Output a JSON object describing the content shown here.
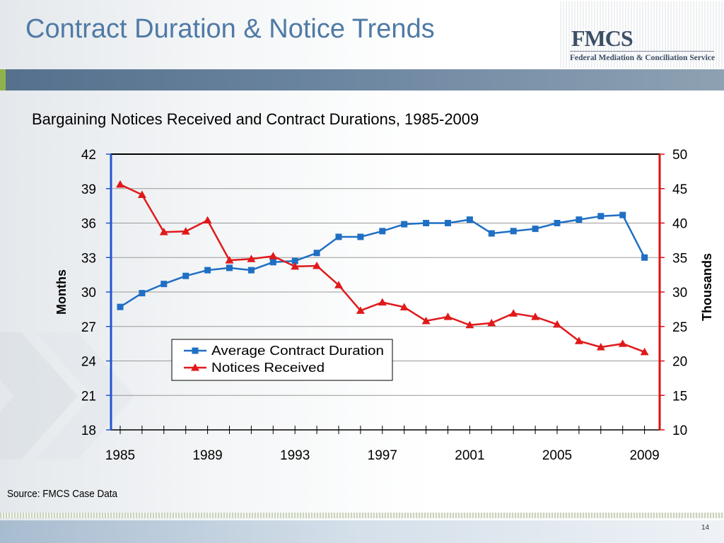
{
  "slide": {
    "title": "Contract Duration & Notice Trends",
    "logo_mark": "FMCS",
    "logo_subtitle": "Federal Mediation & Conciliation Service",
    "source": "Source: FMCS Case Data",
    "page_number": "14"
  },
  "colors": {
    "title": "#4f7aa6",
    "header_band": "#5f7a96",
    "left_axis": "#2255cc",
    "right_axis": "#dd1111",
    "series_duration": "#1f6fc4",
    "series_notices": "#e0191b",
    "grid": "#999999"
  },
  "icons": {
    "logo": "fmcs-logo",
    "background": "chevron-decoration"
  },
  "chart_data": {
    "type": "line",
    "title": "Bargaining Notices Received and Contract Durations, 1985-2009",
    "x": [
      1985,
      1986,
      1987,
      1988,
      1989,
      1990,
      1991,
      1992,
      1993,
      1994,
      1995,
      1996,
      1997,
      1998,
      1999,
      2000,
      2001,
      2002,
      2003,
      2004,
      2005,
      2006,
      2007,
      2008,
      2009
    ],
    "x_tick_labels": [
      "1985",
      "1989",
      "1993",
      "1997",
      "2001",
      "2005",
      "2009"
    ],
    "y_left": {
      "label": "Months",
      "min": 18,
      "max": 42,
      "ticks": [
        18,
        21,
        24,
        27,
        30,
        33,
        36,
        39,
        42
      ]
    },
    "y_right": {
      "label": "Thousands",
      "min": 10,
      "max": 50,
      "ticks": [
        10,
        15,
        20,
        25,
        30,
        35,
        40,
        45,
        50
      ]
    },
    "grid": true,
    "legend_position": "center-left",
    "series": [
      {
        "name": "Average Contract Duration",
        "axis": "left",
        "marker": "square",
        "values": [
          28.7,
          29.9,
          30.7,
          31.4,
          31.9,
          32.1,
          31.9,
          32.6,
          32.7,
          33.4,
          34.8,
          34.8,
          35.3,
          35.9,
          36.0,
          36.0,
          36.3,
          35.1,
          35.3,
          35.5,
          36.0,
          36.3,
          36.6,
          36.7,
          33.0
        ]
      },
      {
        "name": "Notices Received",
        "axis": "right",
        "marker": "triangle",
        "values": [
          45.6,
          44.1,
          38.7,
          38.8,
          40.4,
          34.6,
          34.8,
          35.2,
          33.7,
          33.8,
          31.0,
          27.3,
          28.5,
          27.8,
          25.8,
          26.4,
          25.2,
          25.5,
          26.9,
          26.4,
          25.3,
          22.9,
          22.0,
          22.5,
          21.3
        ]
      }
    ]
  }
}
